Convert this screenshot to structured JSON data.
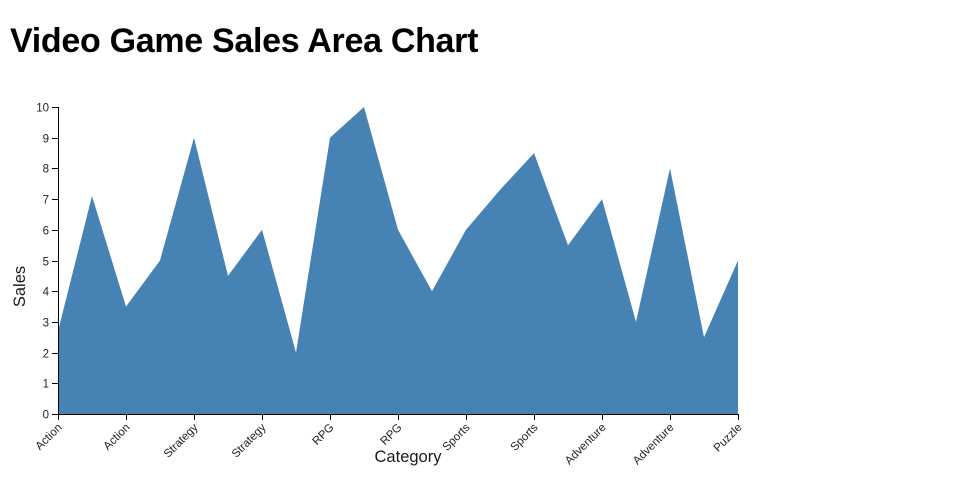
{
  "page_title": "Video Game Sales Area Chart",
  "chart_data": {
    "type": "area",
    "title": "Video Game Sales Area Chart",
    "xlabel": "Category",
    "ylabel": "Sales",
    "ylim": [
      0,
      10
    ],
    "yticks": [
      0,
      1,
      2,
      3,
      4,
      5,
      6,
      7,
      8,
      9,
      10
    ],
    "categories": [
      "Action",
      "Action",
      "Strategy",
      "Strategy",
      "RPG",
      "RPG",
      "Sports",
      "Sports",
      "Adventure",
      "Adventure",
      "Puzzle"
    ],
    "values": [
      2.7,
      7.1,
      3.5,
      5.0,
      9.0,
      4.5,
      6.0,
      2.0,
      9.0,
      10.0,
      6.0,
      4.0,
      6.0,
      7.3,
      8.5,
      5.5,
      7.0,
      3.0,
      8.0,
      2.5,
      5.0
    ],
    "tick_every_n_points": 2,
    "grid": false,
    "legend": false,
    "area_color": "#4682b4",
    "axis_color": "#000000",
    "tick_label_color": "#222222"
  }
}
